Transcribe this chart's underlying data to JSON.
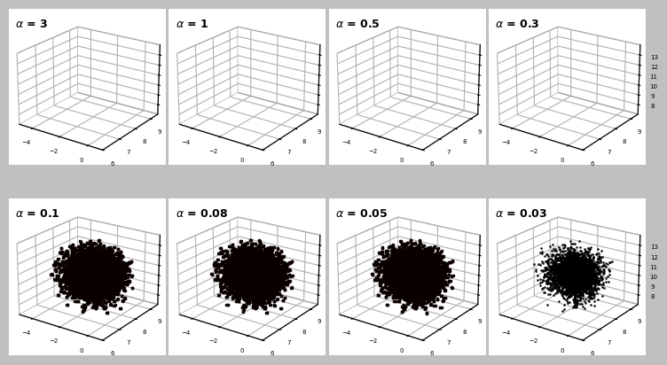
{
  "alpha_values": [
    "3",
    "1",
    "0.5",
    "0.3",
    "0.1",
    "0.08",
    "0.05",
    "0.03"
  ],
  "bg_color": "#c0c0c0",
  "pane_color": "#ffffff",
  "pane_edge_color": "#aaaaaa",
  "face_colors": [
    "#e88080",
    "#d06060",
    "#b83030",
    "#800010",
    "#500000",
    "#300000",
    "#000000",
    "#000000"
  ],
  "edge_color": "#111111",
  "title_fontsize": 9,
  "elev": 22,
  "azim": -55,
  "xlim": [
    -5,
    1
  ],
  "ylim": [
    6,
    9.5
  ],
  "zlim": [
    7,
    14
  ],
  "xticks": [
    -4,
    -2,
    0
  ],
  "yticks": [
    6,
    7,
    8,
    9
  ],
  "zticks": [
    8,
    9,
    10,
    11,
    12,
    13
  ],
  "n_points": 5000,
  "seed": 42
}
